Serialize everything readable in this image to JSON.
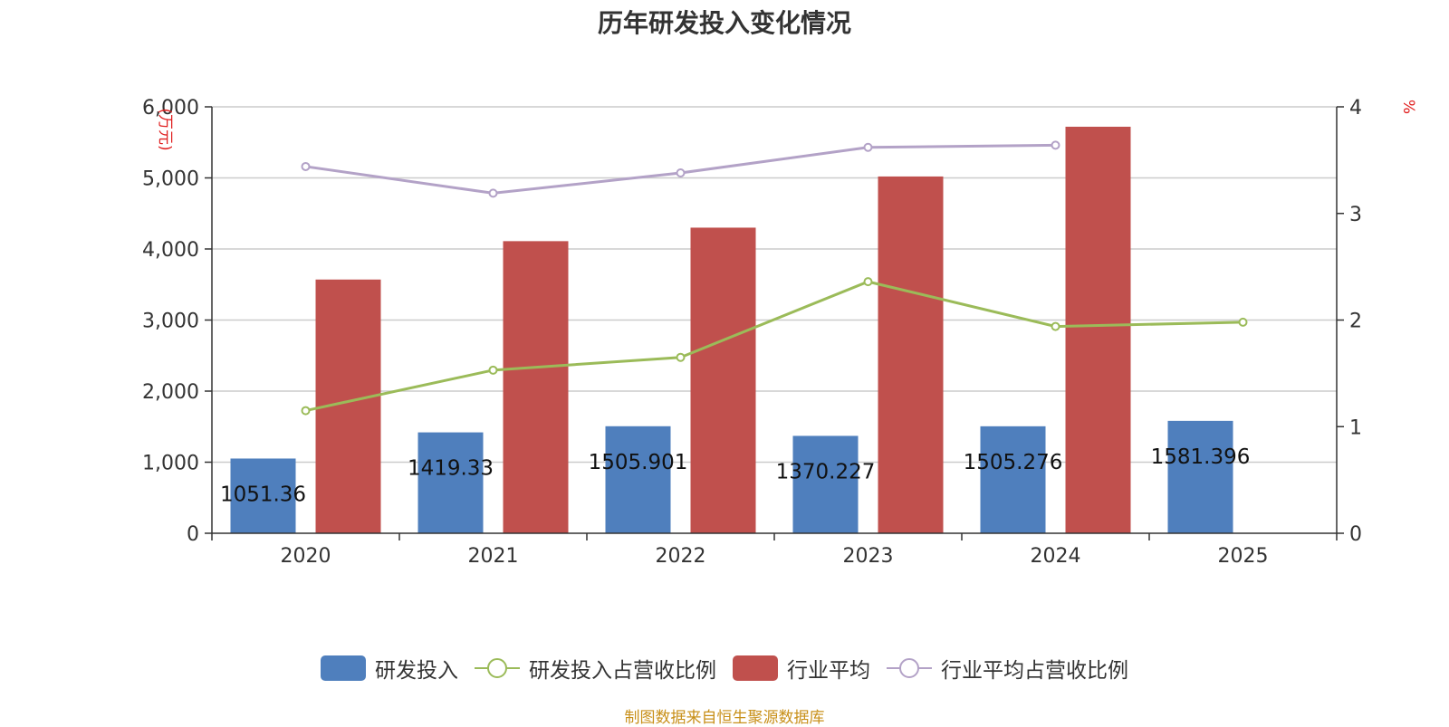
{
  "title": "历年研发投入变化情况",
  "source": "制图数据来自恒生聚源数据库",
  "chart_data": {
    "type": "bar",
    "categories": [
      "2020",
      "2021",
      "2022",
      "2023",
      "2024",
      "2025"
    ],
    "y_left": {
      "unit_label": "(万元)",
      "ylim": [
        0,
        6000
      ],
      "ticks": [
        "0",
        "1,000",
        "2,000",
        "3,000",
        "4,000",
        "5,000",
        "6,000"
      ],
      "tick_values": [
        0,
        1000,
        2000,
        3000,
        4000,
        5000,
        6000
      ]
    },
    "y_right": {
      "unit_label": "%",
      "ylim": [
        0,
        4
      ],
      "ticks": [
        "0",
        "1",
        "2",
        "3",
        "4"
      ],
      "tick_values": [
        0,
        1,
        2,
        3,
        4
      ]
    },
    "grid": true,
    "legend_position": "bottom",
    "series": [
      {
        "name": "研发投入",
        "kind": "bar",
        "axis": "left",
        "color": "#4f7fbd",
        "values": [
          1051.36,
          1419.33,
          1505.901,
          1370.227,
          1505.276,
          1581.396
        ],
        "labels": [
          "1051.36",
          "1419.33",
          "1505.901",
          "1370.227",
          "1505.276",
          "1581.396"
        ]
      },
      {
        "name": "研发投入占营收比例",
        "kind": "line",
        "axis": "right",
        "color": "#9bbb59",
        "values": [
          1.15,
          1.53,
          1.65,
          2.36,
          1.94,
          1.98
        ]
      },
      {
        "name": "行业平均",
        "kind": "bar",
        "axis": "left",
        "color": "#c0504d",
        "values": [
          3570,
          4110,
          4300,
          5020,
          5720,
          null
        ]
      },
      {
        "name": "行业平均占营收比例",
        "kind": "line",
        "axis": "right",
        "color": "#b3a2c7",
        "values": [
          3.44,
          3.19,
          3.38,
          3.62,
          3.64,
          null
        ]
      }
    ]
  }
}
